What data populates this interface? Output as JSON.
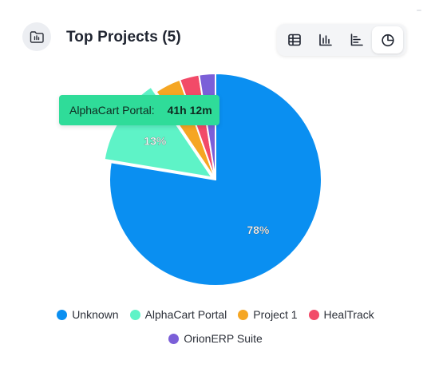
{
  "header": {
    "title": "Top Projects (5)",
    "icon": "folder-chart-icon"
  },
  "toolbar": {
    "buttons": [
      {
        "name": "table-view",
        "icon": "table-icon",
        "active": false
      },
      {
        "name": "bar-view",
        "icon": "bar-chart-icon",
        "active": false
      },
      {
        "name": "horizontal-bar-view",
        "icon": "horizontal-bar-chart-icon",
        "active": false
      },
      {
        "name": "pie-view",
        "icon": "pie-chart-icon",
        "active": true
      }
    ]
  },
  "tooltip": {
    "label": "AlphaCart Portal:",
    "value": "41h 12m"
  },
  "chart_data": {
    "type": "pie",
    "slices": [
      {
        "label": "Unknown",
        "value": 78,
        "color": "#0a8ff1",
        "data_label": "78%"
      },
      {
        "label": "AlphaCart Portal",
        "value": 13,
        "color": "#5ef3c7",
        "data_label": "13%"
      },
      {
        "label": "Project 1",
        "value": 4,
        "color": "#f5a623",
        "data_label": ""
      },
      {
        "label": "HealTrack",
        "value": 3,
        "color": "#f24a68",
        "data_label": ""
      },
      {
        "label": "OrionERP Suite",
        "value": 2.5,
        "color": "#7b5fd8",
        "data_label": ""
      }
    ],
    "legend_position": "bottom",
    "highlighted": "AlphaCart Portal"
  }
}
